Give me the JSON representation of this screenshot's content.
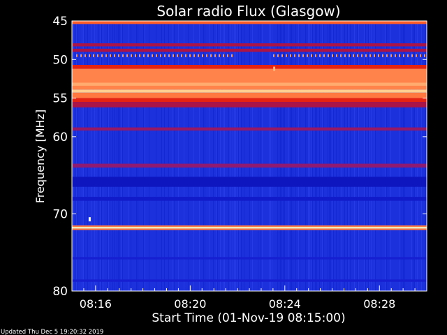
{
  "footer": {
    "updated": "Updated Thu Dec  5 19:20:32 2019"
  },
  "chart_data": {
    "type": "heatmap",
    "title": "Solar radio Flux (Glasgow)",
    "xlabel": "Start Time (01-Nov-19 08:15:00)",
    "ylabel": "Frequency [MHz]",
    "x_tick_labels": [
      "08:16",
      "08:20",
      "08:24",
      "08:28"
    ],
    "x_ticks_min": [
      1,
      5,
      9,
      13
    ],
    "x_range_min": [
      0,
      15
    ],
    "y_tick_labels": [
      "45",
      "50",
      "55",
      "60",
      "70",
      "80"
    ],
    "y_ticks": [
      45,
      50,
      55,
      60,
      70,
      80
    ],
    "y_range": [
      45,
      80
    ],
    "y_inverted": true,
    "grid": false,
    "colormap": [
      "#00009a",
      "#1e2de8",
      "#7a1f8c",
      "#c0102a",
      "#ff3000",
      "#ff8a50",
      "#ffffc0"
    ],
    "background_color": "#1c30dc",
    "bands": [
      {
        "freq_from": 45.0,
        "freq_to": 45.4,
        "level": 0.75
      },
      {
        "freq_from": 47.9,
        "freq_to": 48.3,
        "level": 0.45
      },
      {
        "freq_from": 48.6,
        "freq_to": 49.0,
        "level": 0.45
      },
      {
        "freq_from": 50.7,
        "freq_to": 51.2,
        "level": 0.6
      },
      {
        "freq_from": 51.2,
        "freq_to": 53.9,
        "level": 0.82
      },
      {
        "freq_from": 53.0,
        "freq_to": 53.4,
        "level": 0.88
      },
      {
        "freq_from": 53.9,
        "freq_to": 54.3,
        "level": 0.93
      },
      {
        "freq_from": 54.3,
        "freq_to": 55.0,
        "level": 0.8
      },
      {
        "freq_from": 55.0,
        "freq_to": 55.5,
        "level": 0.6
      },
      {
        "freq_from": 55.5,
        "freq_to": 56.2,
        "level": 0.45
      },
      {
        "freq_from": 58.8,
        "freq_to": 59.2,
        "level": 0.4
      },
      {
        "freq_from": 63.5,
        "freq_to": 64.0,
        "level": 0.38
      },
      {
        "freq_from": 65.2,
        "freq_to": 66.5,
        "level": 0.08
      },
      {
        "freq_from": 67.8,
        "freq_to": 68.3,
        "level": 0.1
      },
      {
        "freq_from": 71.5,
        "freq_to": 71.7,
        "level": 0.8
      },
      {
        "freq_from": 71.7,
        "freq_to": 71.9,
        "level": 1.0
      },
      {
        "freq_from": 71.9,
        "freq_to": 72.1,
        "level": 0.8
      },
      {
        "freq_from": 75.6,
        "freq_to": 75.9,
        "level": 0.12
      },
      {
        "freq_from": 78.5,
        "freq_to": 78.8,
        "level": 0.12
      }
    ],
    "dashed_line": {
      "freq": 49.5,
      "level": 0.85,
      "gap_from_min": 6.9,
      "gap_to_min": 8.4
    },
    "spots": [
      {
        "time_min": 0.75,
        "freq": 70.7,
        "level": 1.0
      },
      {
        "time_min": 8.55,
        "freq": 51.2,
        "level": 0.9
      }
    ]
  }
}
